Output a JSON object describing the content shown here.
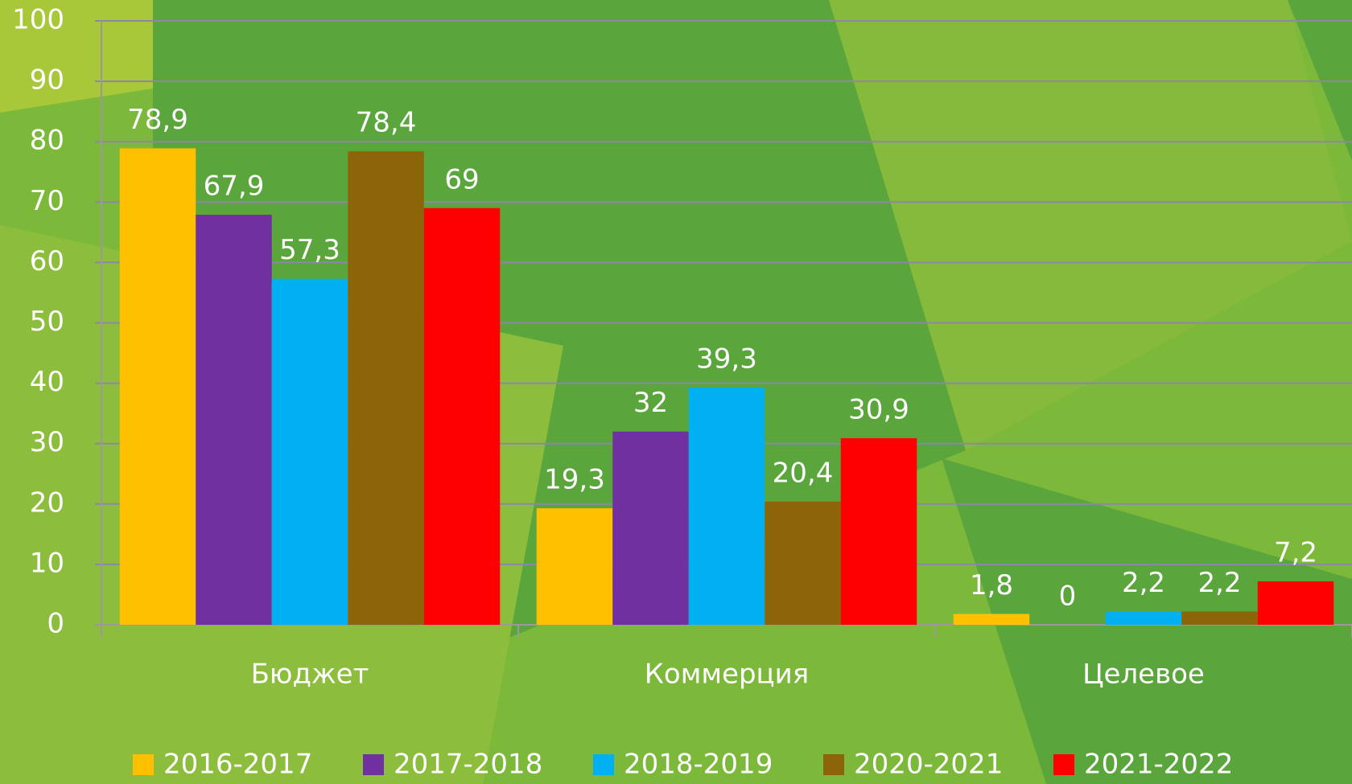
{
  "chart_data": {
    "type": "bar",
    "categories": [
      "Бюджет",
      "Коммерция",
      "Целевое"
    ],
    "series": [
      {
        "name": "2016-2017",
        "color": "#ffc000",
        "values": [
          78.9,
          19.3,
          1.8
        ],
        "value_labels": [
          "78,9",
          "19,3",
          "1,8"
        ]
      },
      {
        "name": "2017-2018",
        "color": "#7030a0",
        "values": [
          67.9,
          32,
          0
        ],
        "value_labels": [
          "67,9",
          "32",
          "0"
        ]
      },
      {
        "name": "2018-2019",
        "color": "#00b0f0",
        "values": [
          57.3,
          39.3,
          2.2
        ],
        "value_labels": [
          "57,3",
          "39,3",
          "2,2"
        ]
      },
      {
        "name": "2020-2021",
        "color": "#8b6508",
        "values": [
          78.4,
          20.4,
          2.2
        ],
        "value_labels": [
          "78,4",
          "20,4",
          "2,2"
        ]
      },
      {
        "name": "2021-2022",
        "color": "#ff0000",
        "values": [
          69,
          30.9,
          7.2
        ],
        "value_labels": [
          "69",
          "30,9",
          "7,2"
        ]
      }
    ],
    "ylim": [
      0,
      100
    ],
    "yticks": [
      0,
      10,
      20,
      30,
      40,
      50,
      60,
      70,
      80,
      90,
      100
    ],
    "grid": true,
    "legend": "bottom"
  }
}
